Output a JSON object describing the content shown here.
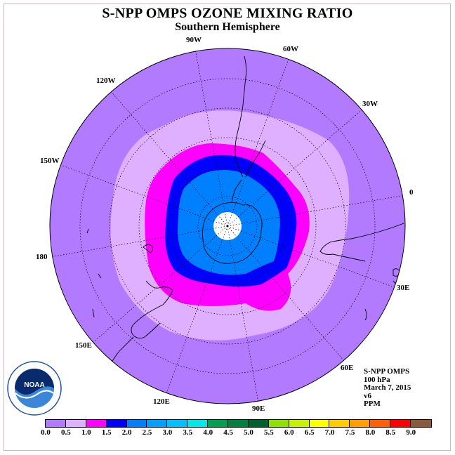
{
  "title": "S-NPP OMPS OZONE MIXING RATIO",
  "subtitle": "Southern Hemisphere",
  "longitude_labels": {
    "w90": "90W",
    "w60": "60W",
    "w30": "30W",
    "e0": "0",
    "w120": "120W",
    "w150": "150W",
    "d180": "180",
    "e30": "30E",
    "e60": "60E",
    "e90": "90E",
    "e120": "120E",
    "e150": "150E"
  },
  "info": {
    "instrument": "S-NPP OMPS",
    "level": "100 hPa",
    "date": "March 7, 2015",
    "version": "v6",
    "units": "PPM"
  },
  "logo": {
    "text": "NOAA"
  },
  "colorbar": {
    "ticks": [
      "0.0",
      "0.5",
      "1.0",
      "1.5",
      "2.0",
      "2.5",
      "3.0",
      "3.5",
      "4.0",
      "4.5",
      "5.0",
      "5.5",
      "6.0",
      "6.5",
      "7.0",
      "7.5",
      "8.0",
      "8.5",
      "9.0"
    ],
    "colors": [
      "#b27bff",
      "#dfb0ff",
      "#ff00ff",
      "#0000ff",
      "#0080ff",
      "#00a0ff",
      "#00c0ff",
      "#00e8e8",
      "#00a050",
      "#008040",
      "#006030",
      "#90e000",
      "#c8f000",
      "#ffff00",
      "#ffcc00",
      "#ffa000",
      "#ff6000",
      "#ff0000",
      "#8b5a3c"
    ]
  }
}
